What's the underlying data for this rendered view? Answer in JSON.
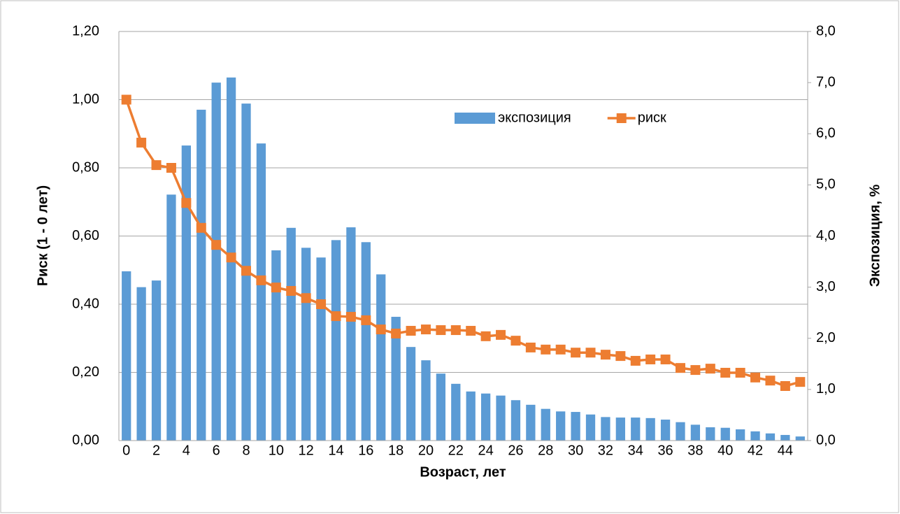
{
  "chart_data": {
    "type": "bar_line",
    "x_label": "Возраст, лет",
    "y_label": "Риск (1 - 0 лет)",
    "y2_label": "Экспозиция, %",
    "categories": [
      "0",
      null,
      "2",
      null,
      "4",
      null,
      "6",
      null,
      "8",
      null,
      "10",
      null,
      "12",
      null,
      "14",
      null,
      "16",
      null,
      "18",
      null,
      "20",
      null,
      "22",
      null,
      "24",
      null,
      "26",
      null,
      "28",
      null,
      "30",
      null,
      "32",
      null,
      "34",
      null,
      "36",
      null,
      "38",
      null,
      "40",
      null,
      "42",
      null,
      "44",
      null
    ],
    "series": [
      {
        "name": "экспозиция",
        "type": "bar",
        "axis": "y2",
        "color": "#5b9bd5",
        "values": [
          3.31,
          3.0,
          3.13,
          4.81,
          5.77,
          6.47,
          7.0,
          7.1,
          6.59,
          5.81,
          3.72,
          4.16,
          3.77,
          3.58,
          3.92,
          4.17,
          3.88,
          3.25,
          2.42,
          1.83,
          1.57,
          1.31,
          1.11,
          0.96,
          0.92,
          0.88,
          0.79,
          0.7,
          0.62,
          0.57,
          0.56,
          0.51,
          0.46,
          0.45,
          0.45,
          0.44,
          0.41,
          0.36,
          0.31,
          0.26,
          0.25,
          0.22,
          0.18,
          0.14,
          0.11,
          0.08
        ]
      },
      {
        "name": "риск",
        "type": "line",
        "axis": "y",
        "color": "#ed7d31",
        "values": [
          1.0,
          0.874,
          0.808,
          0.8,
          0.697,
          0.624,
          0.574,
          0.537,
          0.498,
          0.47,
          0.449,
          0.439,
          0.418,
          0.4,
          0.365,
          0.363,
          0.353,
          0.326,
          0.314,
          0.322,
          0.326,
          0.324,
          0.324,
          0.322,
          0.306,
          0.31,
          0.293,
          0.273,
          0.267,
          0.267,
          0.258,
          0.258,
          0.252,
          0.248,
          0.234,
          0.238,
          0.238,
          0.213,
          0.207,
          0.211,
          0.199,
          0.199,
          0.185,
          0.176,
          0.16,
          0.172
        ]
      }
    ],
    "ylim": [
      0,
      1.2
    ],
    "yticks": [
      {
        "value": 0,
        "label": "0,00"
      },
      {
        "value": 0.2,
        "label": "0,20"
      },
      {
        "value": 0.4,
        "label": "0,40"
      },
      {
        "value": 0.6,
        "label": "0,60"
      },
      {
        "value": 0.8,
        "label": "0,80"
      },
      {
        "value": 1.0,
        "label": "1,00"
      },
      {
        "value": 1.2,
        "label": "1,20"
      }
    ],
    "y2lim": [
      0,
      8
    ],
    "y2ticks": [
      {
        "value": 0,
        "label": "0,0"
      },
      {
        "value": 1,
        "label": "1,0"
      },
      {
        "value": 2,
        "label": "2,0"
      },
      {
        "value": 3,
        "label": "3,0"
      },
      {
        "value": 4,
        "label": "4,0"
      },
      {
        "value": 5,
        "label": "5,0"
      },
      {
        "value": 6,
        "label": "6,0"
      },
      {
        "value": 7,
        "label": "7,0"
      },
      {
        "value": 8,
        "label": "8,0"
      }
    ],
    "grid": true,
    "legend": "upper right"
  }
}
